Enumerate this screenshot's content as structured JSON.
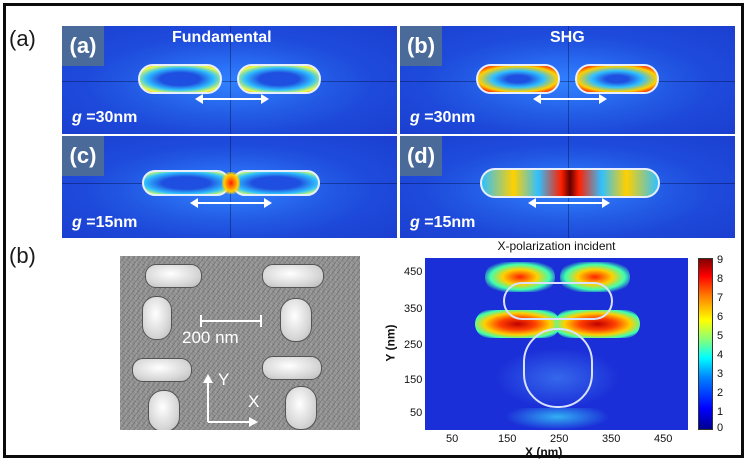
{
  "figure": {
    "panel_a_marker": "(a)",
    "panel_b_marker": "(b)",
    "subpanels": [
      {
        "label": "(a)",
        "title": "Fundamental",
        "gap_symbol": "g",
        "gap_value": "=30nm"
      },
      {
        "label": "(b)",
        "title": "SHG",
        "gap_symbol": "g",
        "gap_value": "=30nm"
      },
      {
        "label": "(c)",
        "title": "",
        "gap_symbol": "g",
        "gap_value": "=15nm"
      },
      {
        "label": "(d)",
        "title": "",
        "gap_symbol": "g",
        "gap_value": "=15nm"
      }
    ],
    "sem": {
      "scale_bar_label": "200 nm",
      "axis_y": "Y",
      "axis_x": "X"
    },
    "heatmap": {
      "title": "X-polarization incident",
      "xlabel": "X (nm)",
      "ylabel": "Y (nm)",
      "x_ticks": [
        "50",
        "150",
        "250",
        "350",
        "450"
      ],
      "y_ticks": [
        "450",
        "350",
        "250",
        "150",
        "50"
      ],
      "colorbar_ticks": [
        "9",
        "8",
        "7",
        "6",
        "5",
        "4",
        "3",
        "2",
        "1",
        "0"
      ]
    },
    "colors": {
      "field_background": "#1b3fd0",
      "hotspot": "#ff2a00",
      "label_box": "#4a6a9a"
    }
  }
}
